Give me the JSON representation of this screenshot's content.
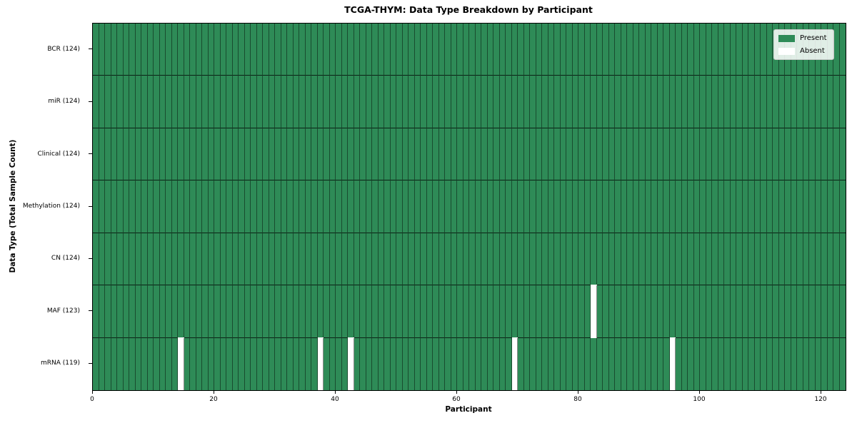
{
  "chart_data": {
    "type": "heatmap",
    "title": "TCGA-THYM: Data Type Breakdown by Participant",
    "xlabel": "Participant",
    "ylabel": "Data Type (Total Sample Count)",
    "x_ticks": [
      0,
      20,
      40,
      60,
      80,
      100,
      120
    ],
    "xlim": [
      0,
      124
    ],
    "n_participants": 124,
    "grid": false,
    "legend": {
      "position": "upper right",
      "entries": [
        {
          "label": "Present",
          "color": "#2e8b57"
        },
        {
          "label": "Absent",
          "color": "#ffffff"
        }
      ]
    },
    "rows": [
      {
        "label": "BCR (124)",
        "data_type": "BCR",
        "total": 124,
        "absent_participants": []
      },
      {
        "label": "miR (124)",
        "data_type": "miR",
        "total": 124,
        "absent_participants": []
      },
      {
        "label": "Clinical (124)",
        "data_type": "Clinical",
        "total": 124,
        "absent_participants": []
      },
      {
        "label": "Methylation (124)",
        "data_type": "Methylation",
        "total": 124,
        "absent_participants": []
      },
      {
        "label": "CN (124)",
        "data_type": "CN",
        "total": 124,
        "absent_participants": []
      },
      {
        "label": "MAF (123)",
        "data_type": "MAF",
        "total": 123,
        "absent_participants": [
          82
        ]
      },
      {
        "label": "mRNA (119)",
        "data_type": "mRNA",
        "total": 119,
        "absent_participants": [
          14,
          37,
          42,
          69,
          95
        ]
      }
    ],
    "colors": {
      "present": "#2e8b57",
      "absent": "#ffffff",
      "cell_edge": "#000000",
      "plot_border": "#000000"
    }
  }
}
